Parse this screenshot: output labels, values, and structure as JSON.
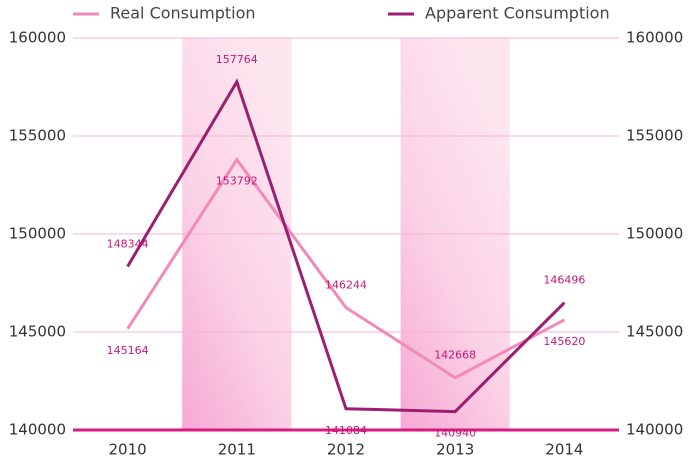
{
  "chart_data": {
    "type": "line",
    "categories": [
      "2010",
      "2011",
      "2012",
      "2013",
      "2014"
    ],
    "series": [
      {
        "name": "Real Consumption",
        "color": "#f28ab8",
        "values": [
          145164,
          153792,
          146244,
          142668,
          145620
        ]
      },
      {
        "name": "Apparent Consumption",
        "color": "#9b1e72",
        "values": [
          148344,
          157764,
          141084,
          140940,
          146496
        ]
      }
    ],
    "ylim": [
      140000,
      160000
    ],
    "yticks": [
      140000,
      145000,
      150000,
      155000,
      160000
    ],
    "grid": true
  }
}
